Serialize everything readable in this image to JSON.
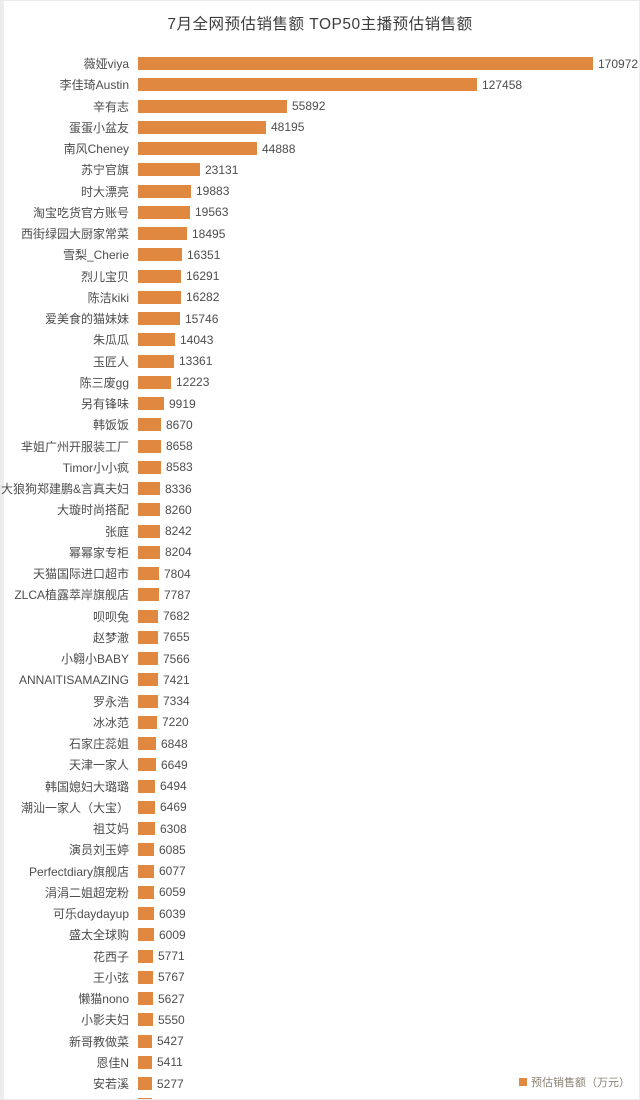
{
  "title": "7月全网预估销售额 TOP50主播预估销售额",
  "legend": {
    "label": "预估销售额（万元）",
    "swatch_color": "#e0883f"
  },
  "colors": {
    "bar": "#e0883f",
    "label_text": "#4d4d4d",
    "value_text": "#4d4d4d",
    "title_text": "#3c3c3c",
    "background": "#ffffff"
  },
  "chart_data": {
    "type": "bar",
    "orientation": "horizontal",
    "title": "7月全网预估销售额 TOP50主播预估销售额",
    "unit": "万元",
    "legend_entries": [
      "预估销售额（万元）"
    ],
    "legend_position": "bottom-right",
    "grid": false,
    "value_axis_max": 170972,
    "categories": [
      "薇娅viya",
      "李佳琦Austin",
      "辛有志",
      "蛋蛋小盆友",
      "南风Cheney",
      "苏宁官旗",
      "时大漂亮",
      "淘宝吃货官方账号",
      "西街绿园大厨家常菜",
      "雪梨_Cherie",
      "烈儿宝贝",
      "陈洁kiki",
      "爱美食的猫妹妹",
      "朱瓜瓜",
      "玉匠人",
      "陈三废gg",
      "另有锋味",
      "韩饭饭",
      "芈姐广州开服装工厂",
      "Timor小小疯",
      "大狼狗郑建鹏&言真夫妇",
      "大璇时尚搭配",
      "张庭",
      "幂幂家专柜",
      "天猫国际进口超市",
      "ZLCA植露萃岸旗舰店",
      "呗呗兔",
      "赵梦澈",
      "小翱小BABY",
      "ANNAITISAMAZING",
      "罗永浩",
      "冰冰范",
      "石家庄蕊姐",
      "天津一家人",
      "韩国媳妇大璐璐",
      "潮汕一家人（大宝）",
      "祖艾妈",
      "演员刘玉婷",
      "Perfectdiary旗舰店",
      "涓涓二姐超宠粉",
      "可乐daydayup",
      "盛太全球购",
      "花西子",
      "王小弦",
      "懒猫nono",
      "小影夫妇",
      "新哥教做菜",
      "恩佳N",
      "安若溪"
    ],
    "values": [
      170972,
      127458,
      55892,
      48195,
      44888,
      23131,
      19883,
      19563,
      18495,
      16351,
      16291,
      16282,
      15746,
      14043,
      13361,
      12223,
      9919,
      8670,
      8658,
      8583,
      8336,
      8260,
      8242,
      8204,
      7804,
      7787,
      7682,
      7655,
      7566,
      7421,
      7334,
      7220,
      6848,
      6649,
      6494,
      6469,
      6308,
      6085,
      6077,
      6059,
      6039,
      6009,
      5771,
      5767,
      5627,
      5550,
      5427,
      5411,
      5277
    ],
    "clipped_extra_row": true,
    "clipped_extra_row_value_estimate": 5200
  }
}
